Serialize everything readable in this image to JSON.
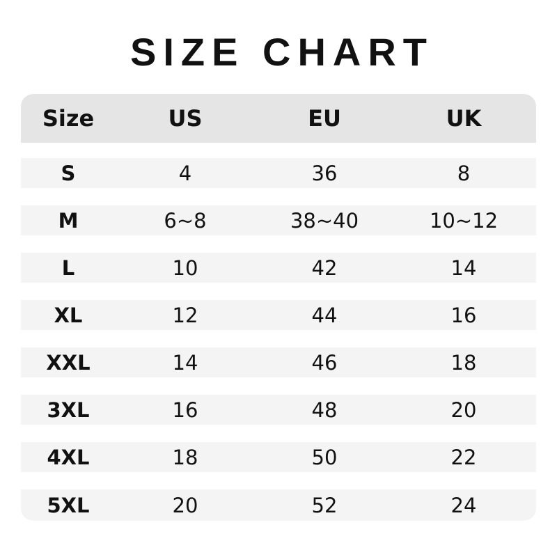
{
  "title": "SIZE CHART",
  "headers": [
    "Size",
    "US",
    "EU",
    "UK"
  ],
  "rows": [
    [
      "S",
      "4",
      "36",
      "8"
    ],
    [
      "M",
      "6~8",
      "38~40",
      "10~12"
    ],
    [
      "L",
      "10",
      "42",
      "14"
    ],
    [
      "XL",
      "12",
      "44",
      "16"
    ],
    [
      "XXL",
      "14",
      "46",
      "18"
    ],
    [
      "3XL",
      "16",
      "48",
      "20"
    ],
    [
      "4XL",
      "18",
      "50",
      "22"
    ],
    [
      "5XL",
      "20",
      "52",
      "24"
    ]
  ],
  "colors": {
    "header_bg": "#e5e5e5",
    "row_bg": "#f4f4f4",
    "text": "#111111"
  }
}
